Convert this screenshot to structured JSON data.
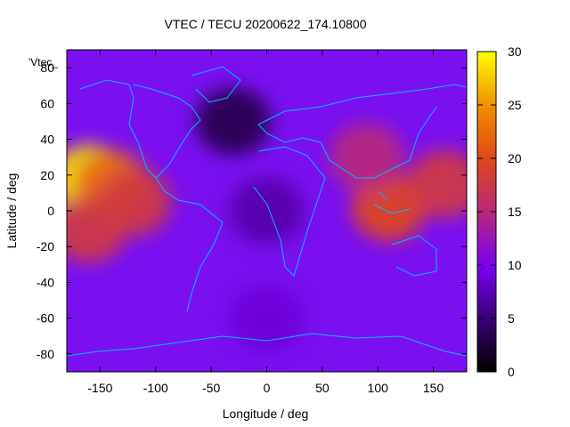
{
  "chart_data": {
    "type": "heatmap",
    "title": "VTEC / TECU 20200622_174.10800",
    "xlabel": "Longitude / deg",
    "ylabel": "Latitude / deg",
    "series_label": "'Vtec_",
    "xlim": [
      -180,
      180
    ],
    "ylim": [
      -90,
      90
    ],
    "xticks": [
      -150,
      -100,
      -50,
      0,
      50,
      100,
      150
    ],
    "yticks": [
      -80,
      -60,
      -40,
      -20,
      0,
      20,
      40,
      60,
      80
    ],
    "colorbar": {
      "min": 0,
      "max": 30,
      "ticks": [
        0,
        5,
        10,
        15,
        20,
        25,
        30
      ],
      "palette": [
        "#000000",
        "#3a0078",
        "#7a00f0",
        "#b8287a",
        "#e04818",
        "#f09000",
        "#ffff00"
      ]
    },
    "grid": false,
    "legend": "top-left",
    "regions": [
      {
        "lon": -160,
        "lat": 18,
        "value": 29
      },
      {
        "lon": -140,
        "lat": 15,
        "value": 22
      },
      {
        "lon": -120,
        "lat": 5,
        "value": 18
      },
      {
        "lon": -160,
        "lat": -10,
        "value": 18
      },
      {
        "lon": 110,
        "lat": 2,
        "value": 20
      },
      {
        "lon": 160,
        "lat": 15,
        "value": 18
      },
      {
        "lon": 90,
        "lat": 30,
        "value": 15
      },
      {
        "lon": -30,
        "lat": 50,
        "value": 3
      },
      {
        "lon": 0,
        "lat": 0,
        "value": 7
      },
      {
        "lon": 0,
        "lat": -60,
        "value": 9
      }
    ]
  }
}
